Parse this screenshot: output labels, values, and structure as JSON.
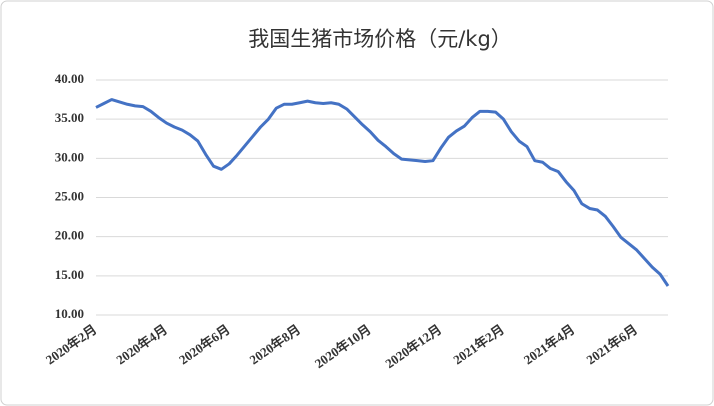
{
  "chart_data": {
    "type": "line",
    "title": "我国生猪市场价格（元/kg）",
    "categories": [
      "2020年2月",
      null,
      null,
      null,
      null,
      null,
      null,
      null,
      null,
      "2020年4月",
      null,
      null,
      null,
      null,
      null,
      null,
      null,
      "2020年6月",
      null,
      null,
      null,
      null,
      null,
      null,
      null,
      null,
      "2020年8月",
      null,
      null,
      null,
      null,
      null,
      null,
      null,
      null,
      "2020年10月",
      null,
      null,
      null,
      null,
      null,
      null,
      null,
      null,
      "2020年12月",
      null,
      null,
      null,
      null,
      null,
      null,
      null,
      "2021年2月",
      null,
      null,
      null,
      null,
      null,
      null,
      null,
      null,
      "2021年4月",
      null,
      null,
      null,
      null,
      null,
      null,
      null,
      "2021年6月",
      null,
      null,
      null,
      null
    ],
    "values": [
      36.5,
      37.0,
      37.5,
      37.2,
      36.9,
      36.7,
      36.6,
      36.0,
      35.2,
      34.5,
      34.0,
      33.6,
      33.0,
      32.2,
      30.5,
      29.0,
      28.6,
      29.3,
      30.4,
      31.6,
      32.8,
      34.0,
      35.0,
      36.4,
      36.9,
      36.9,
      37.1,
      37.3,
      37.1,
      37.0,
      37.1,
      36.9,
      36.3,
      35.3,
      34.3,
      33.4,
      32.3,
      31.5,
      30.6,
      29.9,
      29.8,
      29.7,
      29.6,
      29.7,
      31.3,
      32.7,
      33.5,
      34.1,
      35.2,
      36.0,
      36.0,
      35.9,
      35.0,
      33.4,
      32.2,
      31.5,
      29.7,
      29.5,
      28.7,
      28.3,
      27.0,
      25.9,
      24.2,
      23.6,
      23.4,
      22.6,
      21.3,
      19.9,
      19.1,
      18.3,
      17.2,
      16.1,
      15.2,
      13.7
    ],
    "color": "#4472c4",
    "ylim": [
      10,
      40
    ],
    "yticks": [
      {
        "value": 10,
        "label": "10.00"
      },
      {
        "value": 15,
        "label": "15.00"
      },
      {
        "value": 20,
        "label": "20.00"
      },
      {
        "value": 25,
        "label": "25.00"
      },
      {
        "value": 30,
        "label": "30.00"
      },
      {
        "value": 35,
        "label": "35.00"
      },
      {
        "value": 40,
        "label": "40.00"
      }
    ],
    "grid": true
  }
}
